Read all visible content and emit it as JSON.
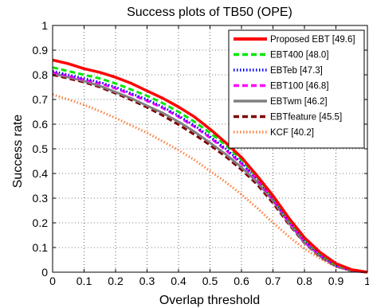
{
  "chart_data": {
    "type": "line",
    "title": "Success plots of TB50 (OPE)",
    "xlabel": "Overlap threshold",
    "ylabel": "Success rate",
    "xlim": [
      0,
      1
    ],
    "ylim": [
      0,
      1
    ],
    "xticks": [
      "0",
      "0.1",
      "0.2",
      "0.3",
      "0.4",
      "0.5",
      "0.6",
      "0.7",
      "0.8",
      "0.9",
      "1"
    ],
    "yticks": [
      "0",
      "0.1",
      "0.2",
      "0.3",
      "0.4",
      "0.5",
      "0.6",
      "0.7",
      "0.8",
      "0.9",
      "1"
    ],
    "grid": true,
    "legend_position": "top-right",
    "x": [
      0,
      0.05,
      0.1,
      0.15,
      0.2,
      0.25,
      0.3,
      0.35,
      0.4,
      0.45,
      0.5,
      0.55,
      0.6,
      0.65,
      0.7,
      0.75,
      0.8,
      0.85,
      0.9,
      0.95,
      1.0
    ],
    "series": [
      {
        "name": "Proposed EBT [49.6]",
        "color": "#ff0000",
        "style": "solid",
        "values": [
          0.86,
          0.845,
          0.825,
          0.81,
          0.79,
          0.765,
          0.735,
          0.705,
          0.67,
          0.63,
          0.58,
          0.525,
          0.465,
          0.39,
          0.31,
          0.22,
          0.14,
          0.08,
          0.035,
          0.01,
          0.0
        ]
      },
      {
        "name": "EBT400 [48.0]",
        "color": "#00e600",
        "style": "dashed",
        "values": [
          0.83,
          0.815,
          0.8,
          0.785,
          0.765,
          0.74,
          0.715,
          0.685,
          0.65,
          0.61,
          0.565,
          0.515,
          0.455,
          0.385,
          0.305,
          0.215,
          0.135,
          0.075,
          0.03,
          0.008,
          0.0
        ]
      },
      {
        "name": "EBTeb [47.3]",
        "color": "#0000ff",
        "style": "dotted",
        "values": [
          0.815,
          0.8,
          0.785,
          0.77,
          0.75,
          0.725,
          0.7,
          0.67,
          0.635,
          0.595,
          0.55,
          0.5,
          0.445,
          0.38,
          0.3,
          0.21,
          0.13,
          0.07,
          0.028,
          0.007,
          0.0
        ]
      },
      {
        "name": "EBT100 [46.8]",
        "color": "#ff00ff",
        "style": "dashed",
        "values": [
          0.81,
          0.795,
          0.78,
          0.765,
          0.745,
          0.72,
          0.695,
          0.665,
          0.63,
          0.59,
          0.545,
          0.495,
          0.44,
          0.375,
          0.295,
          0.205,
          0.125,
          0.068,
          0.027,
          0.006,
          0.0
        ]
      },
      {
        "name": "EBTwm [46.2]",
        "color": "#808080",
        "style": "solid",
        "values": [
          0.805,
          0.79,
          0.775,
          0.755,
          0.73,
          0.705,
          0.675,
          0.645,
          0.61,
          0.57,
          0.525,
          0.478,
          0.425,
          0.365,
          0.29,
          0.2,
          0.12,
          0.065,
          0.025,
          0.005,
          0.0
        ]
      },
      {
        "name": "EBTfeature [45.5]",
        "color": "#800000",
        "style": "dashed",
        "values": [
          0.8,
          0.785,
          0.77,
          0.75,
          0.725,
          0.698,
          0.668,
          0.635,
          0.598,
          0.558,
          0.515,
          0.468,
          0.415,
          0.355,
          0.28,
          0.195,
          0.118,
          0.062,
          0.024,
          0.005,
          0.0
        ]
      },
      {
        "name": "KCF [40.2]",
        "color": "#ff8040",
        "style": "dotted",
        "values": [
          0.72,
          0.7,
          0.678,
          0.653,
          0.625,
          0.595,
          0.565,
          0.53,
          0.495,
          0.455,
          0.41,
          0.365,
          0.315,
          0.26,
          0.2,
          0.145,
          0.095,
          0.055,
          0.022,
          0.005,
          0.0
        ]
      }
    ]
  }
}
